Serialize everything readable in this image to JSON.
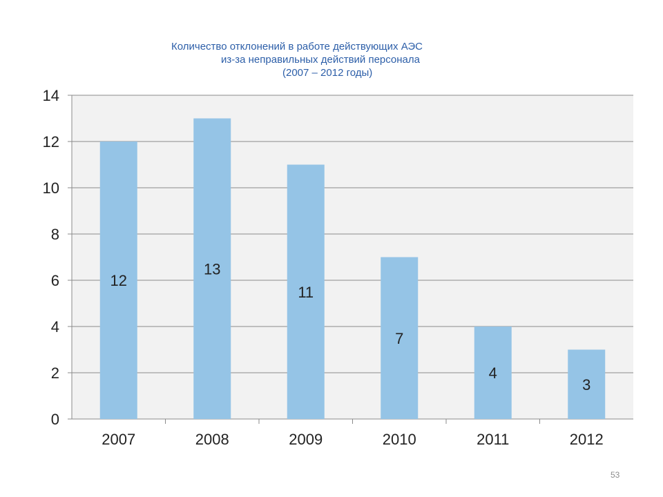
{
  "chart_data": {
    "type": "bar",
    "title_lines": [
      "Количество отклонений в работе действующих АЭС",
      "из-за неправильных действий персонала",
      "(2007 – 2012 годы)"
    ],
    "categories": [
      "2007",
      "2008",
      "2009",
      "2010",
      "2011",
      "2012"
    ],
    "values": [
      12,
      13,
      11,
      7,
      4,
      3
    ],
    "data_labels": [
      "12",
      "13",
      "11",
      "7",
      "4",
      "3"
    ],
    "ylim": [
      0,
      14
    ],
    "yticks": [
      "0",
      "2",
      "4",
      "6",
      "8",
      "10",
      "12",
      "14"
    ],
    "grid": true,
    "bar_color": "#95c4e6",
    "plot_background": "#f2f2f2",
    "legend": "none"
  },
  "page_number": "53"
}
